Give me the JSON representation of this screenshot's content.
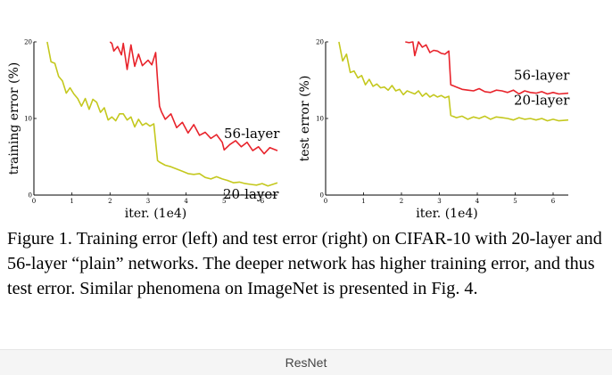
{
  "chart_data": [
    {
      "type": "line",
      "xlabel": "iter. (1e4)",
      "ylabel": "training error (%)",
      "xlim": [
        0,
        6.4
      ],
      "ylim": [
        0,
        20
      ],
      "xticks": [
        "0",
        "1",
        "2",
        "3",
        "4",
        "5",
        "6"
      ],
      "yticks": [
        "0",
        "10",
        "20"
      ],
      "series": [
        {
          "name": "56-layer",
          "color": "#e8232b",
          "x": [
            2.0,
            2.05,
            2.1,
            2.2,
            2.3,
            2.35,
            2.45,
            2.55,
            2.65,
            2.75,
            2.85,
            3.0,
            3.1,
            3.2,
            3.25,
            3.3,
            3.35,
            3.45,
            3.6,
            3.75,
            3.9,
            4.05,
            4.2,
            4.35,
            4.5,
            4.65,
            4.8,
            4.95,
            5.0,
            5.15,
            5.3,
            5.45,
            5.6,
            5.75,
            5.9,
            6.05,
            6.2,
            6.4
          ],
          "y": [
            20.0,
            19.8,
            18.8,
            19.4,
            18.3,
            19.8,
            16.4,
            19.6,
            16.8,
            18.4,
            16.9,
            17.6,
            17.0,
            18.6,
            15.0,
            11.6,
            10.9,
            9.9,
            10.6,
            8.8,
            9.5,
            8.1,
            9.2,
            7.8,
            8.2,
            7.4,
            7.9,
            6.9,
            5.9,
            6.6,
            7.1,
            6.3,
            6.9,
            5.8,
            6.3,
            5.4,
            6.2,
            5.8
          ]
        },
        {
          "name": "20-layer",
          "color": "#c4c81e",
          "x": [
            0.35,
            0.45,
            0.55,
            0.65,
            0.75,
            0.85,
            0.95,
            1.05,
            1.15,
            1.25,
            1.35,
            1.45,
            1.55,
            1.65,
            1.75,
            1.85,
            1.95,
            2.05,
            2.15,
            2.25,
            2.35,
            2.45,
            2.55,
            2.65,
            2.75,
            2.85,
            2.95,
            3.05,
            3.15,
            3.25,
            3.3,
            3.45,
            3.6,
            3.75,
            3.9,
            4.05,
            4.2,
            4.35,
            4.5,
            4.65,
            4.8,
            4.95,
            5.1,
            5.25,
            5.4,
            5.55,
            5.7,
            5.85,
            6.0,
            6.15,
            6.4
          ],
          "y": [
            20.0,
            17.4,
            17.2,
            15.5,
            14.9,
            13.3,
            14.0,
            13.2,
            12.6,
            11.6,
            12.6,
            11.2,
            12.5,
            12.1,
            10.8,
            11.4,
            9.8,
            10.2,
            9.7,
            10.6,
            10.6,
            9.8,
            10.2,
            8.9,
            9.9,
            9.1,
            9.4,
            9.0,
            9.3,
            4.5,
            4.3,
            3.9,
            3.7,
            3.4,
            3.1,
            2.8,
            2.7,
            2.8,
            2.3,
            2.1,
            2.4,
            2.1,
            1.9,
            1.6,
            1.7,
            1.5,
            1.4,
            1.3,
            1.5,
            1.2,
            1.6
          ]
        }
      ]
    },
    {
      "type": "line",
      "xlabel": "iter. (1e4)",
      "ylabel": "test error (%)",
      "xlim": [
        0,
        6.4
      ],
      "ylim": [
        0,
        20
      ],
      "xticks": [
        "0",
        "1",
        "2",
        "3",
        "4",
        "5",
        "6"
      ],
      "yticks": [
        "0",
        "10",
        "20"
      ],
      "series": [
        {
          "name": "56-layer",
          "color": "#e8232b",
          "x": [
            2.1,
            2.2,
            2.3,
            2.35,
            2.45,
            2.55,
            2.65,
            2.75,
            2.85,
            2.95,
            3.05,
            3.15,
            3.25,
            3.3,
            3.45,
            3.6,
            3.75,
            3.9,
            4.05,
            4.2,
            4.35,
            4.5,
            4.65,
            4.8,
            4.95,
            5.1,
            5.25,
            5.4,
            5.55,
            5.7,
            5.85,
            6.0,
            6.15,
            6.4
          ],
          "y": [
            20.0,
            19.9,
            20.0,
            18.2,
            20.0,
            19.3,
            19.6,
            18.6,
            18.9,
            18.8,
            18.5,
            18.4,
            18.8,
            14.4,
            14.1,
            13.8,
            13.7,
            13.6,
            13.9,
            13.5,
            13.4,
            13.7,
            13.6,
            13.4,
            13.7,
            13.2,
            13.6,
            13.4,
            13.3,
            13.5,
            13.2,
            13.4,
            13.2,
            13.3
          ]
        },
        {
          "name": "20-layer",
          "color": "#c4c81e",
          "x": [
            0.35,
            0.45,
            0.55,
            0.65,
            0.75,
            0.85,
            0.95,
            1.05,
            1.15,
            1.25,
            1.35,
            1.45,
            1.55,
            1.65,
            1.75,
            1.85,
            1.95,
            2.05,
            2.15,
            2.25,
            2.35,
            2.45,
            2.55,
            2.65,
            2.75,
            2.85,
            2.95,
            3.05,
            3.15,
            3.25,
            3.3,
            3.45,
            3.6,
            3.75,
            3.9,
            4.05,
            4.2,
            4.35,
            4.5,
            4.65,
            4.8,
            4.95,
            5.1,
            5.25,
            5.4,
            5.55,
            5.7,
            5.85,
            6.0,
            6.15,
            6.4
          ],
          "y": [
            20.0,
            17.5,
            18.4,
            16.0,
            16.2,
            15.3,
            15.6,
            14.4,
            15.1,
            14.2,
            14.5,
            14.0,
            14.1,
            13.7,
            14.3,
            13.6,
            13.8,
            13.1,
            13.6,
            13.4,
            13.2,
            13.6,
            12.9,
            13.3,
            12.8,
            13.1,
            12.8,
            13.0,
            12.7,
            12.9,
            10.4,
            10.1,
            10.3,
            9.9,
            10.2,
            10.0,
            10.3,
            9.9,
            10.2,
            10.1,
            10.0,
            9.8,
            10.1,
            9.9,
            10.0,
            9.8,
            10.0,
            9.7,
            9.9,
            9.7,
            9.8
          ]
        }
      ]
    }
  ],
  "caption": "Figure 1. Training error (left) and test error (right) on CIFAR-10 with 20-layer and 56-layer “plain” networks. The deeper network has higher training error, and thus test error.  Similar phenomena on ImageNet is presented in Fig. 4.",
  "footer": {
    "label": "ResNet"
  }
}
